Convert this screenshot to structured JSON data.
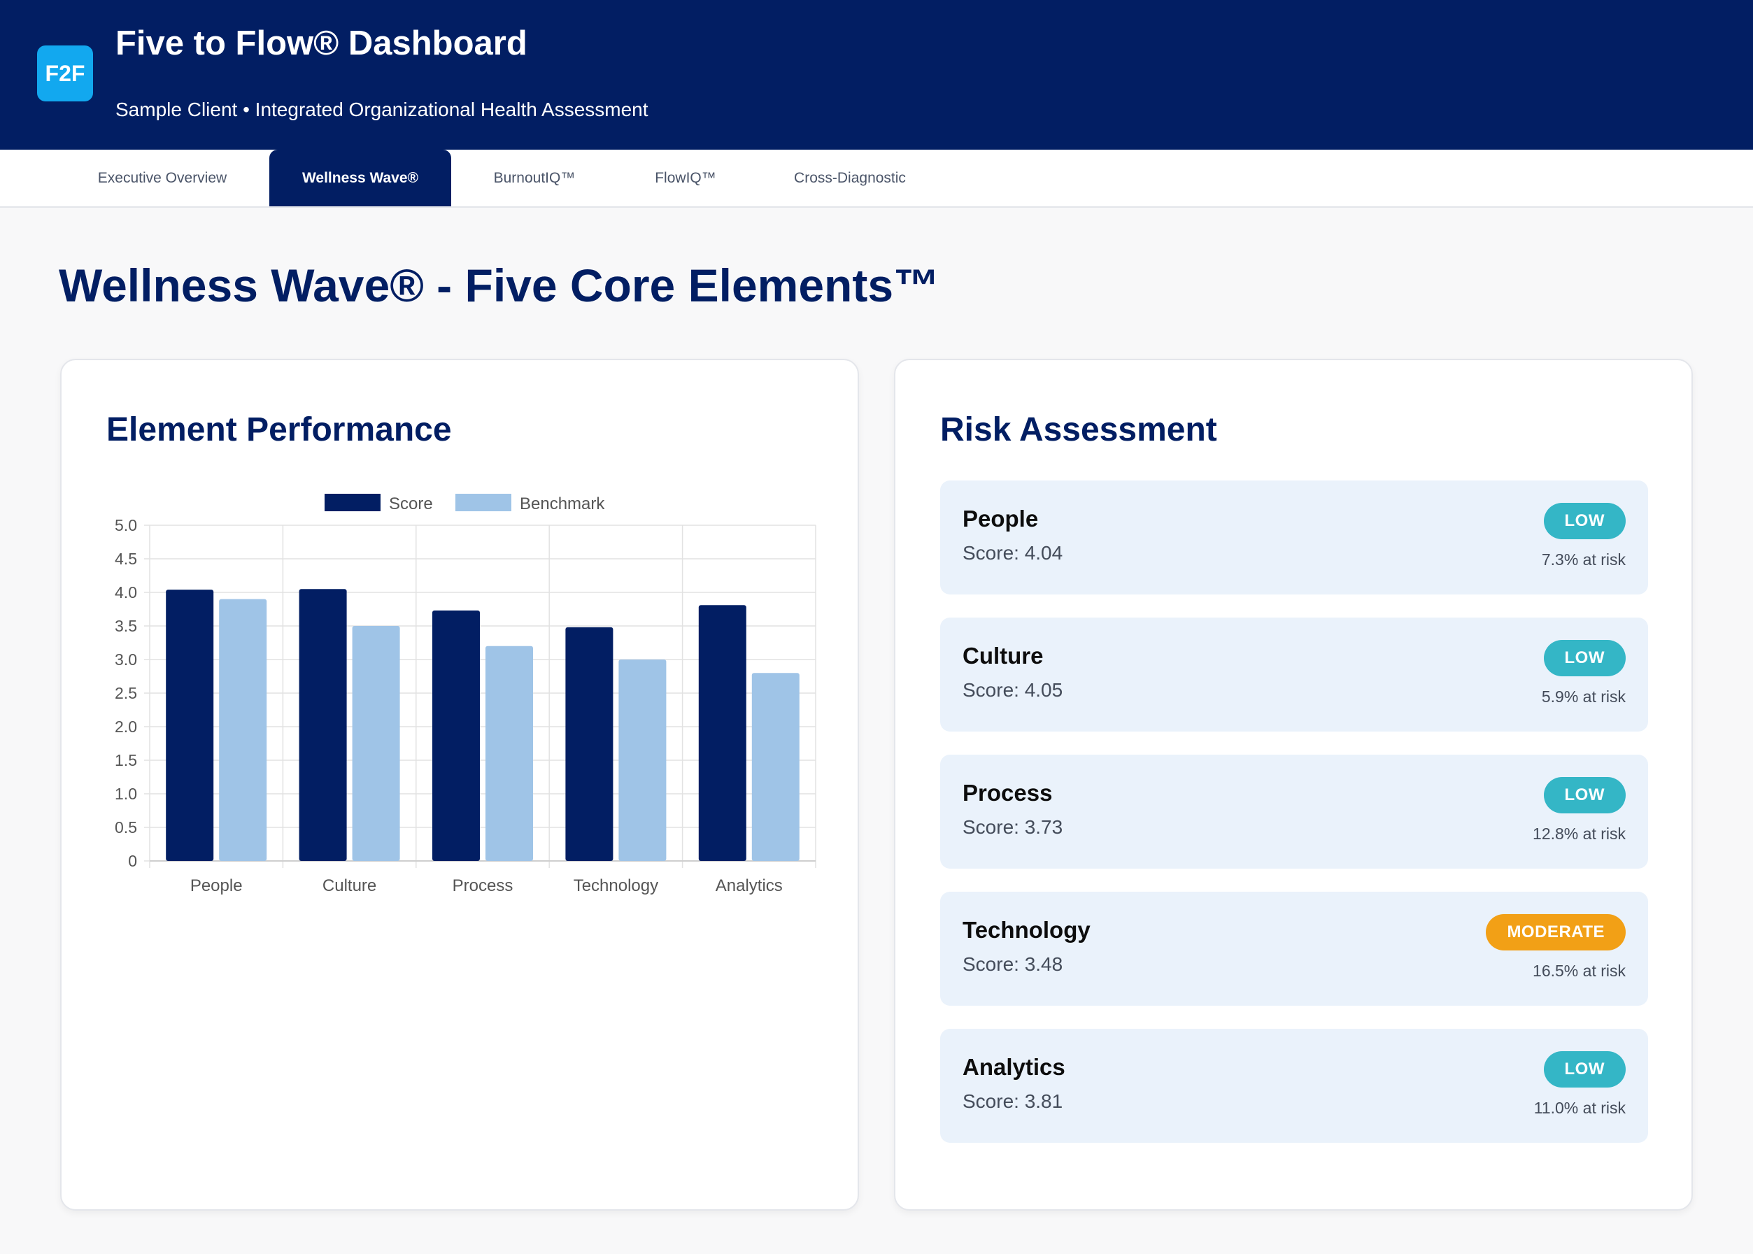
{
  "header": {
    "logo_text": "F2F",
    "title": "Five to Flow® Dashboard",
    "subtitle": "Sample Client • Integrated Organizational Health Assessment"
  },
  "tabs": [
    {
      "label": "Executive Overview",
      "active": false
    },
    {
      "label": "Wellness Wave®",
      "active": true
    },
    {
      "label": "BurnoutIQ™",
      "active": false
    },
    {
      "label": "FlowIQ™",
      "active": false
    },
    {
      "label": "Cross-Diagnostic",
      "active": false
    }
  ],
  "page_title": "Wellness Wave® - Five Core Elements™",
  "performance": {
    "title": "Element Performance"
  },
  "chart_data": {
    "type": "bar",
    "categories": [
      "People",
      "Culture",
      "Process",
      "Technology",
      "Analytics"
    ],
    "series": [
      {
        "name": "Score",
        "color": "#021e63",
        "values": [
          4.04,
          4.05,
          3.73,
          3.48,
          3.81
        ]
      },
      {
        "name": "Benchmark",
        "color": "#9fc4e7",
        "values": [
          3.9,
          3.5,
          3.2,
          3.0,
          2.8
        ]
      }
    ],
    "ylim": [
      0,
      5
    ],
    "yticks": [
      "0",
      "0.5",
      "1.0",
      "1.5",
      "2.0",
      "2.5",
      "3.0",
      "3.5",
      "4.0",
      "4.5",
      "5.0"
    ],
    "legend": "top",
    "grid": true
  },
  "risk": {
    "title": "Risk Assessment",
    "items": [
      {
        "name": "People",
        "score": "Score: 4.04",
        "level": "LOW",
        "color": "#34b6c6",
        "pct": "7.3% at risk"
      },
      {
        "name": "Culture",
        "score": "Score: 4.05",
        "level": "LOW",
        "color": "#34b6c6",
        "pct": "5.9% at risk"
      },
      {
        "name": "Process",
        "score": "Score: 3.73",
        "level": "LOW",
        "color": "#34b6c6",
        "pct": "12.8% at risk"
      },
      {
        "name": "Technology",
        "score": "Score: 3.48",
        "level": "MODERATE",
        "color": "#f2a016",
        "pct": "16.5% at risk"
      },
      {
        "name": "Analytics",
        "score": "Score: 3.81",
        "level": "LOW",
        "color": "#34b6c6",
        "pct": "11.0% at risk"
      }
    ]
  }
}
